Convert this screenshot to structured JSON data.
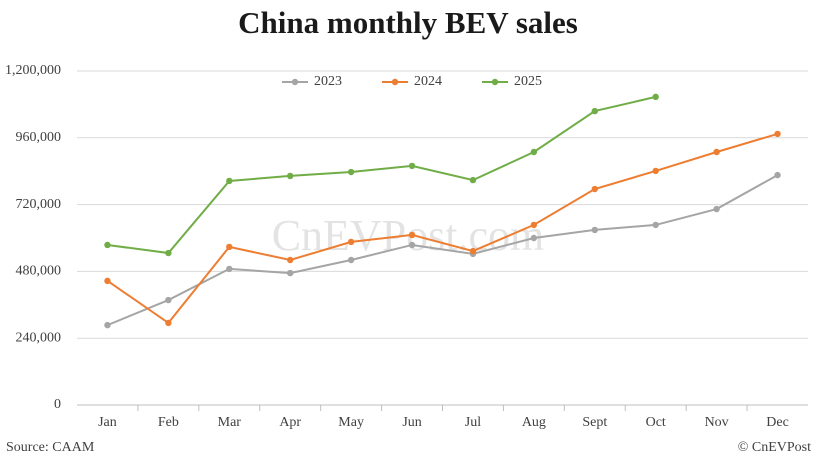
{
  "chart_data": {
    "type": "line",
    "title": "China monthly BEV sales",
    "watermark": "CnEVPost.com",
    "source": "Source: CAAM",
    "credit": "© CnEVPost",
    "categories": [
      "Jan",
      "Feb",
      "Mar",
      "Apr",
      "May",
      "Jun",
      "Jul",
      "Aug",
      "Sept",
      "Oct",
      "Nov",
      "Dec"
    ],
    "series": [
      {
        "name": "2023",
        "color": "#a5a5a5",
        "values": [
          287000,
          377000,
          489000,
          474000,
          521000,
          575000,
          543000,
          600000,
          629000,
          647000,
          704000,
          826000
        ]
      },
      {
        "name": "2024",
        "color": "#ed7d31",
        "values": [
          446000,
          295000,
          568000,
          521000,
          586000,
          611000,
          553000,
          647000,
          776000,
          841000,
          909000,
          974000
        ]
      },
      {
        "name": "2025",
        "color": "#70ad47",
        "values": [
          575000,
          546000,
          805000,
          823000,
          837000,
          859000,
          808000,
          909000,
          1056000,
          1107000,
          null,
          null
        ]
      }
    ],
    "ylim": [
      0,
      1200000
    ],
    "yticks": [
      0,
      {
        "value": 240000,
        "label": "240,000"
      },
      {
        "value": 480000,
        "label": "480,000"
      },
      {
        "value": 720000,
        "label": "720,000"
      },
      {
        "value": 960000,
        "label": "960,000"
      },
      {
        "value": 1200000,
        "label": "1,200,000"
      }
    ],
    "grid": true,
    "legend": "top"
  }
}
